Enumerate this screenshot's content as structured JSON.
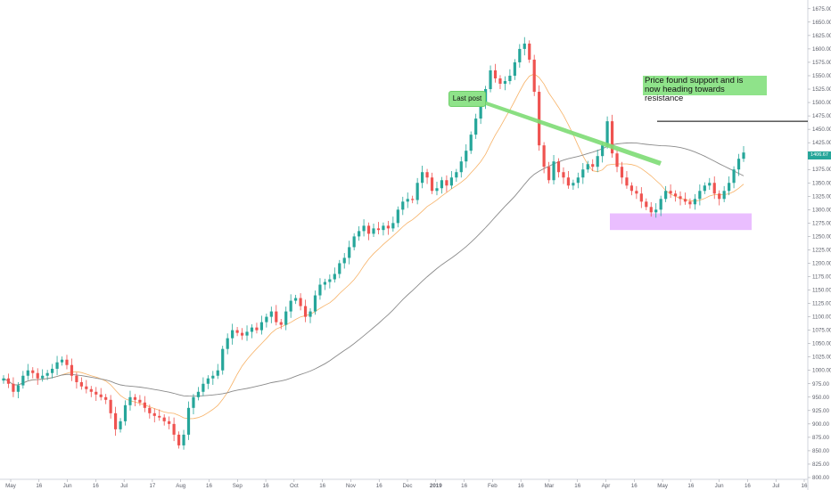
{
  "chart_data": {
    "type": "candlestick",
    "x_labels": [
      "May",
      "16",
      "Jun",
      "16",
      "Jul",
      "17",
      "Aug",
      "16",
      "Sep",
      "16",
      "Oct",
      "16",
      "Nov",
      "16",
      "Dec",
      "2019",
      "16",
      "Feb",
      "16",
      "Mar",
      "16",
      "Apr",
      "16",
      "May",
      "16",
      "Jun",
      "16",
      "Jul",
      "16"
    ],
    "y_ticks": [
      "800.00",
      "825.00",
      "850.00",
      "875.00",
      "900.00",
      "925.00",
      "950.00",
      "975.00",
      "1000.00",
      "1025.00",
      "1050.00",
      "1075.00",
      "1100.00",
      "1125.00",
      "1150.00",
      "1175.00",
      "1200.00",
      "1225.00",
      "1250.00",
      "1275.00",
      "1300.00",
      "1325.00",
      "1350.00",
      "1375.00",
      "1400.00",
      "1425.00",
      "1450.00",
      "1475.00",
      "1500.00",
      "1525.00",
      "1550.00",
      "1575.00",
      "1600.00",
      "1625.00",
      "1650.00",
      "1675.00"
    ],
    "ylim": [
      800,
      1688
    ],
    "last_price_label": "1406.67",
    "resistance_level": 1465,
    "support_zone": [
      1262,
      1293
    ],
    "colors": {
      "up": "#26a69a",
      "down": "#ef5350",
      "ma_short": "#f7b267",
      "ma_long": "#8a8a8a",
      "zone": "#e6b3ff",
      "line": "#000000",
      "note_bg": "#8fe38a",
      "note_arrow": "#7ddc74"
    },
    "close_path": [
      985,
      975,
      960,
      972,
      990,
      1000,
      995,
      985,
      990,
      995,
      1003,
      1015,
      1020,
      1010,
      990,
      978,
      970,
      965,
      960,
      955,
      950,
      945,
      920,
      890,
      905,
      935,
      950,
      945,
      940,
      930,
      920,
      915,
      912,
      905,
      900,
      880,
      860,
      880,
      930,
      950,
      960,
      975,
      985,
      990,
      1000,
      1040,
      1060,
      1075,
      1070,
      1065,
      1072,
      1080,
      1075,
      1090,
      1100,
      1110,
      1090,
      1085,
      1110,
      1130,
      1135,
      1120,
      1100,
      1110,
      1140,
      1160,
      1165,
      1170,
      1180,
      1200,
      1210,
      1230,
      1250,
      1260,
      1270,
      1255,
      1265,
      1262,
      1270,
      1265,
      1275,
      1300,
      1315,
      1320,
      1318,
      1350,
      1370,
      1360,
      1335,
      1340,
      1355,
      1345,
      1360,
      1370,
      1390,
      1410,
      1440,
      1470,
      1500,
      1525,
      1560,
      1545,
      1535,
      1540,
      1550,
      1575,
      1600,
      1610,
      1580,
      1520,
      1420,
      1380,
      1355,
      1390,
      1370,
      1360,
      1345,
      1350,
      1360,
      1375,
      1385,
      1380,
      1400,
      1420,
      1465,
      1405,
      1380,
      1360,
      1345,
      1335,
      1330,
      1315,
      1305,
      1295,
      1300,
      1320,
      1335,
      1330,
      1325,
      1320,
      1315,
      1310,
      1320,
      1335,
      1345,
      1350,
      1330,
      1320,
      1335,
      1350,
      1375,
      1395,
      1406.67
    ]
  },
  "annotations": {
    "last_post": "Last post",
    "support_line1": "Price found support and is",
    "support_line2": "now heading towards resistance"
  }
}
